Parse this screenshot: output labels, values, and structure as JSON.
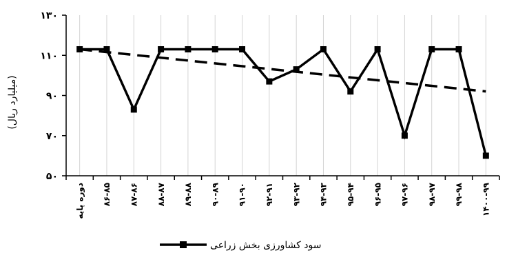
{
  "chart_data": {
    "type": "line",
    "title": "",
    "xlabel": "",
    "ylabel": "(میلیارد ریال)",
    "ylim": [
      50,
      130
    ],
    "yticks": [
      "۵۰",
      "۷۰",
      "۹۰",
      "۱۱۰",
      "۱۳۰"
    ],
    "ytick_values": [
      50,
      70,
      90,
      110,
      130
    ],
    "categories": [
      "دوره پایه",
      "۸۶-۸۵",
      "۸۷-۸۶",
      "۸۸-۸۷",
      "۸۹-۸۸",
      "۹۰-۸۹",
      "۹۱-۹۰",
      "۹۲-۹۱",
      "۹۳-۹۲",
      "۹۴-۹۳",
      "۹۵-۹۴",
      "۹۶-۹۵",
      "۹۷-۹۶",
      "۹۸-۹۷",
      "۹۹-۹۸",
      "۱۴۰۰-۹۹"
    ],
    "series": [
      {
        "name": "سود کشاورزی بخش زراعی",
        "values": [
          113,
          113,
          83,
          113,
          113,
          113,
          113,
          97,
          103,
          113,
          92,
          113,
          70,
          113,
          113,
          60
        ],
        "color": "#000000",
        "marker": "square"
      }
    ],
    "trendline": {
      "from": 113,
      "to": 92,
      "style": "dashed",
      "color": "#000000"
    },
    "grid": {
      "vertical": true,
      "horizontal": false,
      "color": "#d3d3d3"
    },
    "legend": {
      "placement": "bottom-center"
    }
  }
}
